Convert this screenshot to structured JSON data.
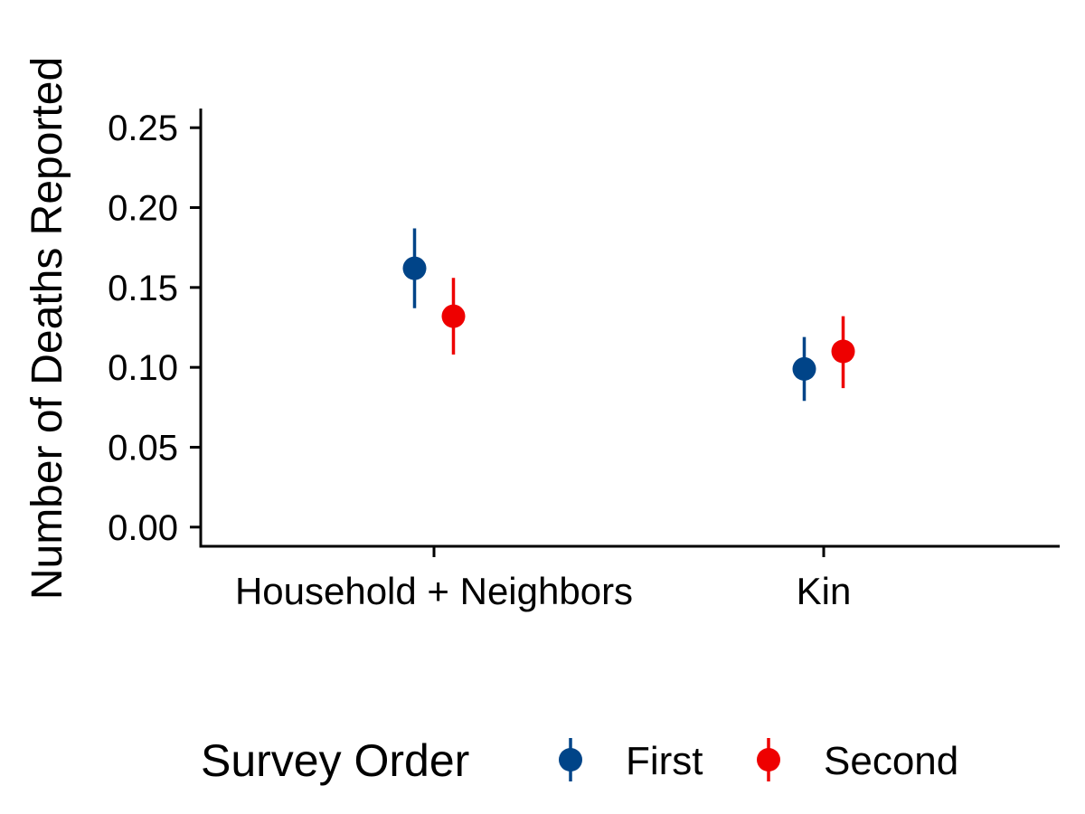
{
  "chart_data": {
    "type": "scatter",
    "subtype": "point-range",
    "title": "",
    "xlabel": "",
    "ylabel": "Number of Deaths Reported",
    "categories": [
      "Household + Neighbors",
      "Kin"
    ],
    "ylim": [
      -0.012,
      0.262
    ],
    "yticks": [
      0.0,
      0.05,
      0.1,
      0.15,
      0.2,
      0.25
    ],
    "ytick_labels": [
      "0.00",
      "0.05",
      "0.10",
      "0.15",
      "0.20",
      "0.25"
    ],
    "grid": false,
    "legend": {
      "title": "Survey Order",
      "position": "bottom"
    },
    "series": [
      {
        "name": "First",
        "color": "#004488",
        "values": [
          0.162,
          0.099
        ],
        "lower": [
          0.137,
          0.079
        ],
        "upper": [
          0.187,
          0.119
        ]
      },
      {
        "name": "Second",
        "color": "#EE0000",
        "values": [
          0.132,
          0.11
        ],
        "lower": [
          0.108,
          0.087
        ],
        "upper": [
          0.156,
          0.132
        ]
      }
    ]
  }
}
